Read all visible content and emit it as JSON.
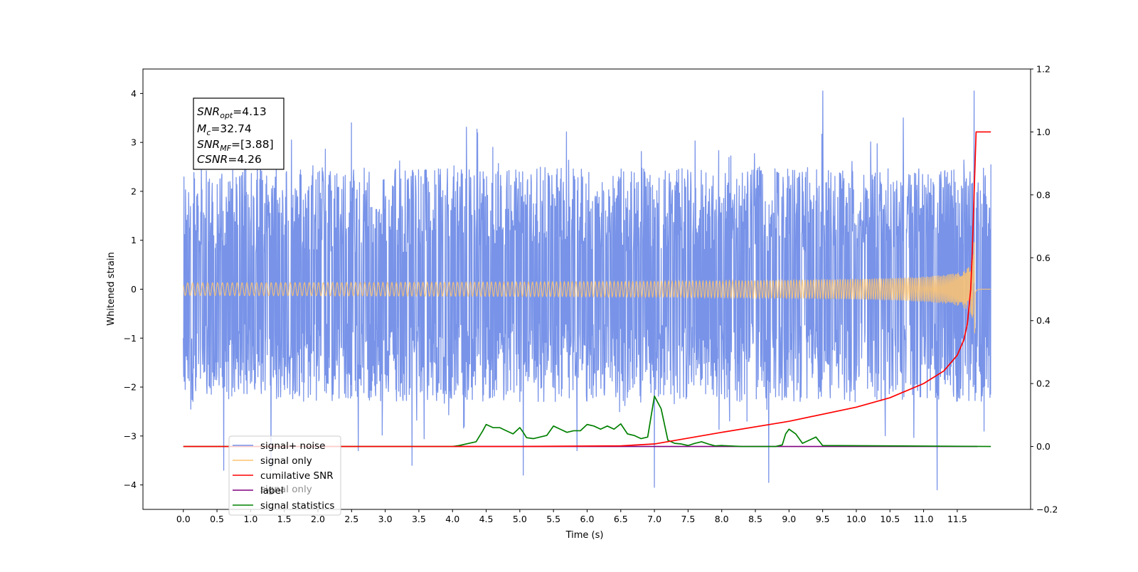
{
  "chart_data": {
    "type": "line",
    "title": "",
    "xlabel": "Time (s)",
    "ylabel": "Whitened strain",
    "xlim": [
      -0.6,
      12.59
    ],
    "ylim": [
      -4.5,
      4.5
    ],
    "y2lim": [
      -0.2,
      1.2
    ],
    "x_ticks": [
      "0.0",
      "0.5",
      "1.0",
      "1.5",
      "2.0",
      "2.5",
      "3.0",
      "3.5",
      "4.0",
      "4.5",
      "5.0",
      "5.5",
      "6.0",
      "6.5",
      "7.0",
      "7.5",
      "8.0",
      "8.5",
      "9.0",
      "9.5",
      "10.0",
      "10.5",
      "11.0",
      "11.5"
    ],
    "y_ticks": [
      "4",
      "3",
      "2",
      "1",
      "0",
      "−1",
      "−2",
      "−3",
      "−4"
    ],
    "y2_ticks": [
      "1.2",
      "1.0",
      "0.8",
      "0.6",
      "0.4",
      "0.2",
      "0.0",
      "−0.2"
    ],
    "annotation": {
      "lines": [
        {
          "main": "SNR",
          "sub": "opt",
          "value": "=4.13"
        },
        {
          "main": "M",
          "sub": "c",
          "value": "=32.74"
        },
        {
          "main": "SNR",
          "sub": "MF",
          "value": "=[3.88]"
        },
        {
          "main": "CSNR",
          "sub": "",
          "value": "=4.26"
        }
      ]
    },
    "legend": {
      "placement": "lower-left",
      "entries": [
        {
          "label": "signal+ noise",
          "color": "#7893e8"
        },
        {
          "label": "signal only",
          "color": "#ffc46e"
        },
        {
          "label": "cumilative SNR",
          "color": "#ff0000"
        },
        {
          "label": "label",
          "color": "#800080"
        },
        {
          "label": "signal statistics",
          "color": "#008000"
        }
      ],
      "occluded_text": "signal only"
    },
    "series": [
      {
        "name": "signal+ noise",
        "axis": "left",
        "color": "#7893e8",
        "x_range": [
          0.0,
          12.0
        ],
        "envelope": {
          "typical_max": 2.5,
          "typical_min": -2.3
        },
        "peaks": [
          {
            "x": 0.0,
            "y": 1.3
          },
          {
            "x": 0.0,
            "y": -1.0
          },
          {
            "x": 0.6,
            "y": -3.7
          },
          {
            "x": 1.3,
            "y": -3.7
          },
          {
            "x": 2.5,
            "y": 3.4
          },
          {
            "x": 2.6,
            "y": -3.3
          },
          {
            "x": 3.4,
            "y": -3.6
          },
          {
            "x": 4.6,
            "y": 2.9
          },
          {
            "x": 5.05,
            "y": -3.8
          },
          {
            "x": 5.85,
            "y": -3.3
          },
          {
            "x": 7.0,
            "y": -4.05
          },
          {
            "x": 8.7,
            "y": -3.95
          },
          {
            "x": 9.5,
            "y": 4.05
          },
          {
            "x": 10.7,
            "y": 3.5
          },
          {
            "x": 11.2,
            "y": -4.1
          },
          {
            "x": 11.75,
            "y": 4.05
          },
          {
            "x": 11.9,
            "y": -2.9
          },
          {
            "x": 12.0,
            "y": 2.55
          }
        ]
      },
      {
        "name": "signal only",
        "axis": "left",
        "color": "#ffc46e",
        "description": "chirp",
        "x_range": [
          0.0,
          12.0
        ],
        "peak_time": 11.75,
        "peak_amplitude": 0.95,
        "min_value": -0.9
      },
      {
        "name": "cumilative SNR",
        "axis": "right",
        "color": "#ff0000",
        "x": [
          0.0,
          5.0,
          6.5,
          7.0,
          8.0,
          9.0,
          10.0,
          10.5,
          11.0,
          11.3,
          11.5,
          11.6,
          11.65,
          11.7,
          11.72,
          11.75,
          11.78,
          11.8,
          12.0
        ],
        "y": [
          0.0,
          0.0,
          0.002,
          0.008,
          0.045,
          0.08,
          0.125,
          0.155,
          0.2,
          0.24,
          0.29,
          0.34,
          0.39,
          0.5,
          0.6,
          0.8,
          1.0,
          1.0,
          1.0
        ]
      },
      {
        "name": "label",
        "axis": "right",
        "color": "#800080",
        "x": [
          4.0,
          11.8
        ],
        "y": [
          0.0,
          0.0
        ]
      },
      {
        "name": "signal statistics",
        "axis": "right",
        "color": "#008000",
        "x": [
          0.0,
          4.0,
          4.1,
          4.2,
          4.35,
          4.45,
          4.5,
          4.6,
          4.7,
          4.8,
          4.9,
          5.0,
          5.05,
          5.1,
          5.2,
          5.3,
          5.4,
          5.5,
          5.6,
          5.7,
          5.8,
          5.9,
          6.0,
          6.1,
          6.2,
          6.3,
          6.4,
          6.5,
          6.6,
          6.7,
          6.8,
          6.9,
          7.0,
          7.1,
          7.2,
          7.3,
          7.4,
          7.5,
          7.6,
          7.7,
          7.8,
          7.9,
          8.0,
          8.3,
          8.8,
          8.9,
          8.95,
          9.0,
          9.1,
          9.2,
          9.3,
          9.4,
          9.5,
          12.0
        ],
        "y": [
          0.0,
          0.0,
          0.003,
          0.008,
          0.015,
          0.05,
          0.07,
          0.06,
          0.06,
          0.05,
          0.04,
          0.06,
          0.045,
          0.028,
          0.025,
          0.03,
          0.035,
          0.065,
          0.055,
          0.045,
          0.05,
          0.05,
          0.07,
          0.065,
          0.055,
          0.065,
          0.055,
          0.072,
          0.04,
          0.035,
          0.025,
          0.03,
          0.16,
          0.12,
          0.02,
          0.01,
          0.008,
          0.003,
          0.01,
          0.015,
          0.008,
          0.002,
          0.003,
          0.0,
          0.0,
          0.005,
          0.04,
          0.055,
          0.04,
          0.01,
          0.02,
          0.03,
          0.003,
          0.0
        ]
      }
    ]
  }
}
